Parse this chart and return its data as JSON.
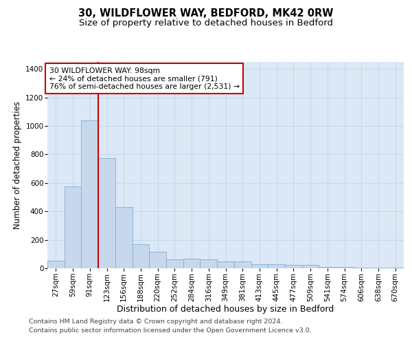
{
  "title1": "30, WILDFLOWER WAY, BEDFORD, MK42 0RW",
  "title2": "Size of property relative to detached houses in Bedford",
  "xlabel": "Distribution of detached houses by size in Bedford",
  "ylabel": "Number of detached properties",
  "categories": [
    "27sqm",
    "59sqm",
    "91sqm",
    "123sqm",
    "156sqm",
    "188sqm",
    "220sqm",
    "252sqm",
    "284sqm",
    "316sqm",
    "349sqm",
    "381sqm",
    "413sqm",
    "445sqm",
    "477sqm",
    "509sqm",
    "541sqm",
    "574sqm",
    "606sqm",
    "638sqm",
    "670sqm"
  ],
  "values": [
    55,
    575,
    1040,
    775,
    430,
    170,
    115,
    65,
    70,
    65,
    50,
    50,
    30,
    30,
    22,
    22,
    10,
    10,
    5,
    5,
    5
  ],
  "bar_color": "#c8d8ec",
  "bar_edge_color": "#7aaed6",
  "vline_x": 2.5,
  "annotation_text": "30 WILDFLOWER WAY: 98sqm\n← 24% of detached houses are smaller (791)\n76% of semi-detached houses are larger (2,531) →",
  "annotation_box_color": "#ffffff",
  "annotation_box_edge": "#cc0000",
  "vline_color": "#cc0000",
  "footer1": "Contains HM Land Registry data © Crown copyright and database right 2024.",
  "footer2": "Contains public sector information licensed under the Open Government Licence v3.0.",
  "ylim": [
    0,
    1450
  ],
  "fig_bg_color": "#ffffff",
  "plot_bg_color": "#dce8f5",
  "grid_color": "#c8d8ec",
  "title1_fontsize": 10.5,
  "title2_fontsize": 9.5,
  "tick_fontsize": 7.5,
  "ylabel_fontsize": 8.5,
  "xlabel_fontsize": 9,
  "footer_fontsize": 6.8,
  "annotation_fontsize": 7.8
}
